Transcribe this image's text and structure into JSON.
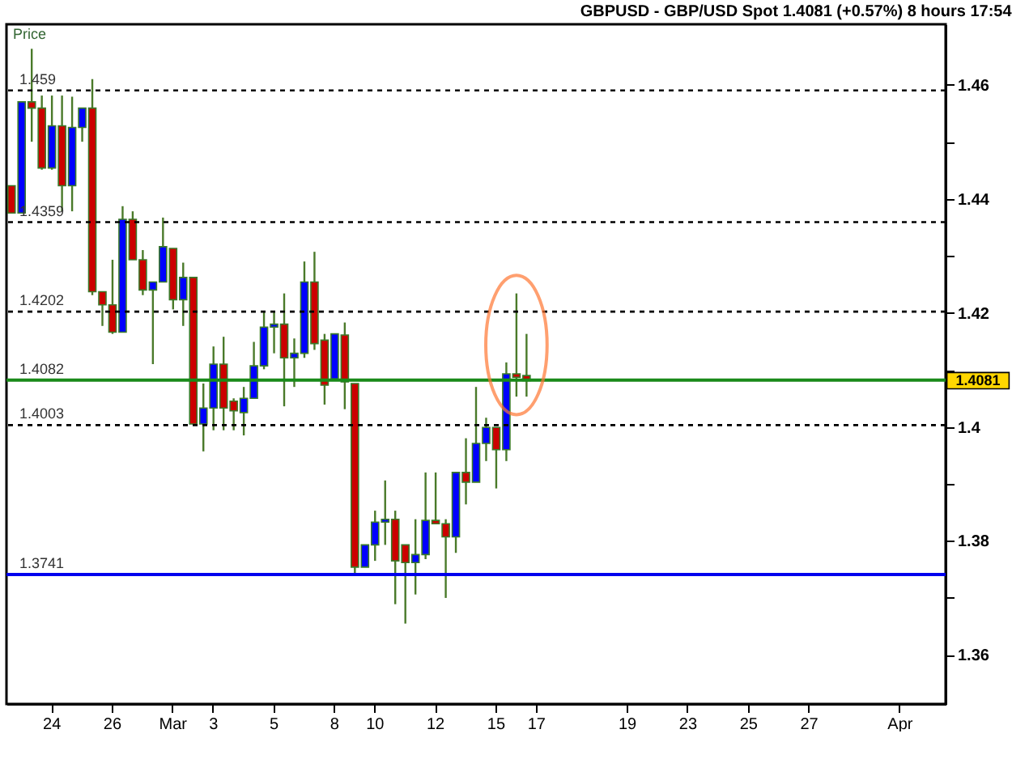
{
  "chart_data": {
    "type": "candlestick",
    "title": "GBPUSD - GBP/USD Spot    1.4081 (+0.57%)    8 hours   17:54",
    "ylabel": "Price",
    "categories": [
      null,
      null,
      null,
      null,
      "24",
      null,
      null,
      null,
      null,
      null,
      "26",
      null,
      null,
      null,
      null,
      null,
      "Mar",
      null,
      null,
      null,
      "3",
      null,
      null,
      null,
      null,
      null,
      "5",
      null,
      null,
      null,
      null,
      null,
      "8",
      null,
      null,
      null,
      "10",
      null,
      null,
      null,
      null,
      null,
      "12",
      null,
      null,
      null,
      null,
      null,
      "15",
      null,
      null,
      null,
      "17",
      null,
      null,
      null,
      null,
      null,
      null,
      null,
      null,
      "19",
      null,
      null,
      null,
      null,
      null,
      "23",
      null,
      null,
      null,
      null,
      null,
      "25",
      null,
      null,
      null,
      null,
      null,
      "27",
      null,
      null,
      null,
      null,
      null,
      null,
      null,
      null,
      "Apr",
      null,
      null,
      null,
      null
    ],
    "ohlc": [
      [
        1.4423,
        1.4423,
        1.4375,
        1.4375
      ],
      [
        1.4375,
        1.457,
        1.4375,
        1.457
      ],
      [
        1.457,
        1.4663,
        1.45,
        1.4559
      ],
      [
        1.4559,
        1.4581,
        1.4451,
        1.4454
      ],
      [
        1.4454,
        1.4581,
        1.4451,
        1.4528
      ],
      [
        1.4528,
        1.4581,
        1.4378,
        1.4423
      ],
      [
        1.4423,
        1.4579,
        1.4378,
        1.4525
      ],
      [
        1.4525,
        1.4559,
        1.45,
        1.4559
      ],
      [
        1.4559,
        1.461,
        1.4231,
        1.4237
      ],
      [
        1.4237,
        1.4237,
        1.4177,
        1.4214
      ],
      [
        1.4214,
        1.4293,
        1.4163,
        1.4166
      ],
      [
        1.4166,
        1.4387,
        1.4166,
        1.4364
      ],
      [
        1.4364,
        1.4378,
        1.4293,
        1.4293
      ],
      [
        1.4293,
        1.431,
        1.4231,
        1.424
      ],
      [
        1.424,
        1.4254,
        1.411,
        1.4254
      ],
      [
        1.4254,
        1.4367,
        1.4254,
        1.4316
      ],
      [
        1.4313,
        1.4313,
        1.4206,
        1.4223
      ],
      [
        1.4223,
        1.4288,
        1.4177,
        1.4262
      ],
      [
        1.4262,
        1.4262,
        1.4005,
        1.4005
      ],
      [
        1.4005,
        1.4076,
        1.3957,
        1.4033
      ],
      [
        1.4033,
        1.4141,
        1.3994,
        1.411
      ],
      [
        1.411,
        1.4158,
        1.3994,
        1.4033
      ],
      [
        1.4045,
        1.405,
        1.3994,
        1.4028
      ],
      [
        1.4025,
        1.407,
        1.3985,
        1.405
      ],
      [
        1.405,
        1.4149,
        1.405,
        1.4107
      ],
      [
        1.4107,
        1.4203,
        1.4101,
        1.4175
      ],
      [
        1.4175,
        1.4203,
        1.4129,
        1.418
      ],
      [
        1.418,
        1.4234,
        1.4036,
        1.4121
      ],
      [
        1.4121,
        1.4155,
        1.407,
        1.4129
      ],
      [
        1.4129,
        1.429,
        1.4121,
        1.4254
      ],
      [
        1.4254,
        1.4307,
        1.4135,
        1.4146
      ],
      [
        1.4152,
        1.4163,
        1.4039,
        1.4073
      ],
      [
        1.4084,
        1.4163,
        1.4084,
        1.4163
      ],
      [
        1.4161,
        1.4183,
        1.4031,
        1.4079
      ],
      [
        1.4076,
        1.4076,
        1.3742,
        1.3754
      ],
      [
        1.3754,
        1.3793,
        1.3754,
        1.3793
      ],
      [
        1.3793,
        1.3853,
        1.3765,
        1.3833
      ],
      [
        1.3833,
        1.3906,
        1.3793,
        1.3838
      ],
      [
        1.3838,
        1.3853,
        1.3689,
        1.3765
      ],
      [
        1.3793,
        1.3793,
        1.3655,
        1.3762
      ],
      [
        1.3762,
        1.3838,
        1.3706,
        1.3776
      ],
      [
        1.3776,
        1.392,
        1.3768,
        1.3836
      ],
      [
        1.3836,
        1.392,
        1.383,
        1.383
      ],
      [
        1.383,
        1.3838,
        1.37,
        1.3807
      ],
      [
        1.3807,
        1.392,
        1.3779,
        1.392
      ],
      [
        1.392,
        1.398,
        1.3864,
        1.3903
      ],
      [
        1.3903,
        1.407,
        1.3903,
        1.3971
      ],
      [
        1.3971,
        1.4016,
        1.394,
        1.3999
      ],
      [
        1.3999,
        1.3999,
        1.3892,
        1.396
      ],
      [
        1.396,
        1.4113,
        1.394,
        1.4093
      ],
      [
        1.4093,
        1.4234,
        1.4053,
        1.4087
      ],
      [
        1.409,
        1.4163,
        1.4053,
        1.4081
      ],
      null,
      null,
      null,
      null,
      null,
      null,
      null,
      null,
      null,
      null,
      null,
      null,
      null,
      null,
      null,
      null,
      null,
      null,
      null,
      null,
      null,
      null,
      null,
      null,
      null,
      null,
      null,
      null,
      null,
      null,
      null,
      null,
      null,
      null,
      null,
      null,
      null,
      null,
      null,
      null,
      null
    ],
    "colors": [
      "#cc0000",
      "#0000ff",
      "#cc0000",
      "#cc0000",
      "#0000ff",
      "#cc0000",
      "#0000ff",
      "#0000ff",
      "#cc0000",
      "#cc0000",
      "#cc0000",
      "#0000ff",
      "#cc0000",
      "#cc0000",
      "#0000ff",
      "#0000ff",
      "#cc0000",
      "#0000ff",
      "#cc0000",
      "#0000ff",
      "#0000ff",
      "#cc0000",
      "#cc0000",
      "#0000ff",
      "#0000ff",
      "#0000ff",
      "#0000ff",
      "#cc0000",
      "#0000ff",
      "#0000ff",
      "#cc0000",
      "#cc0000",
      "#0000ff",
      "#cc0000",
      "#cc0000",
      "#0000ff",
      "#0000ff",
      "#0000ff",
      "#cc0000",
      "#cc0000",
      "#0000ff",
      "#0000ff",
      "#cc0000",
      "#cc0000",
      "#0000ff",
      "#cc0000",
      "#0000ff",
      "#0000ff",
      "#cc0000",
      "#0000ff",
      "#cc0000",
      "#cc0000",
      null,
      null,
      null,
      null,
      null,
      null,
      null,
      null,
      null,
      null,
      null,
      null,
      null,
      null,
      null,
      null,
      null,
      null,
      null,
      null,
      null,
      null,
      null,
      null,
      null,
      null,
      null,
      null,
      null,
      null,
      null,
      null,
      null,
      null,
      null,
      null,
      null,
      null,
      null,
      null,
      null
    ],
    "ylim": [
      1.3514,
      1.4706
    ],
    "yticks": [
      1.36,
      {
        "value": 1.37,
        "label": null
      },
      1.38,
      {
        "value": 1.39,
        "label": null
      },
      1.4,
      {
        "value": 1.41,
        "label": null
      },
      1.42,
      {
        "value": 1.43,
        "label": null
      },
      1.44,
      {
        "value": 1.45,
        "label": null
      },
      1.46
    ],
    "ref_lines": [
      {
        "axis": "y",
        "value": 1.459,
        "label": "1.459",
        "color": "#000000",
        "line_style": "dashed"
      },
      {
        "axis": "y",
        "value": 1.4359,
        "label": "1.4359",
        "color": "#000000",
        "line_style": "dashed"
      },
      {
        "axis": "y",
        "value": 1.4202,
        "label": "1.4202",
        "color": "#000000",
        "line_style": "dashed"
      },
      {
        "axis": "y",
        "value": 1.4082,
        "label": "1.4082",
        "color": "#1a8a1a",
        "line_style": "solid"
      },
      {
        "axis": "y",
        "value": 1.4003,
        "label": "1.4003",
        "color": "#000000",
        "line_style": "dashed"
      },
      {
        "axis": "y",
        "value": 1.3741,
        "label": "1.3741",
        "color": "#0000ee",
        "line_style": "solid"
      }
    ],
    "annotations": [
      "1.4081"
    ],
    "grid": false
  }
}
